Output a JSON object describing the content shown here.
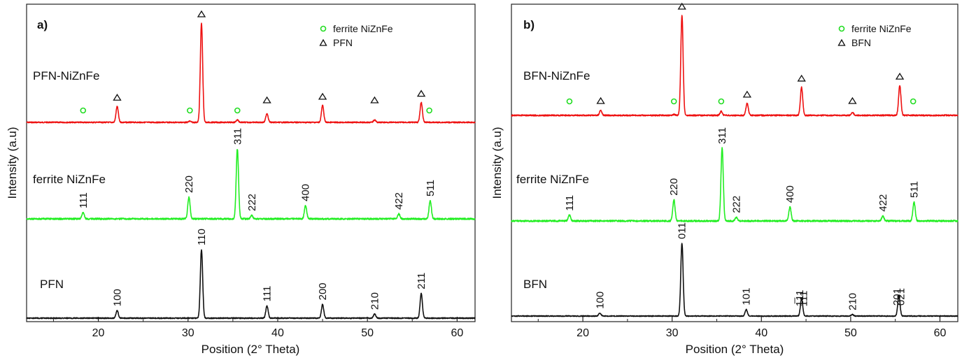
{
  "chart_data": [
    {
      "type": "line",
      "panel_label": "a)",
      "xlabel": "Position (2° Theta)",
      "ylabel": "Intensity (a.u)",
      "xlim": [
        12,
        62
      ],
      "xticks": [
        20,
        30,
        40,
        50,
        60
      ],
      "legend": {
        "placement": "top-right",
        "entries": [
          {
            "marker": "circle",
            "label": "ferrite NiZnFe",
            "color": "#22dd22"
          },
          {
            "marker": "triangle",
            "label": "PFN",
            "color": "#111111"
          }
        ]
      },
      "series": [
        {
          "name": "PFN-NiZnFe",
          "color": "#ee1111",
          "peaks": [
            [
              22.1,
              0.16
            ],
            [
              30.2,
              0.012
            ],
            [
              31.5,
              1.0
            ],
            [
              35.5,
              0.025
            ],
            [
              38.8,
              0.09
            ],
            [
              45.0,
              0.17
            ],
            [
              50.8,
              0.025
            ],
            [
              56.0,
              0.2
            ]
          ],
          "markers": [
            {
              "x": 18.3,
              "type": "circle"
            },
            {
              "x": 22.1,
              "type": "triangle"
            },
            {
              "x": 30.2,
              "type": "circle"
            },
            {
              "x": 31.5,
              "type": "triangle"
            },
            {
              "x": 35.5,
              "type": "circle"
            },
            {
              "x": 38.8,
              "type": "triangle"
            },
            {
              "x": 45.0,
              "type": "triangle"
            },
            {
              "x": 50.8,
              "type": "triangle"
            },
            {
              "x": 56.0,
              "type": "triangle"
            },
            {
              "x": 56.9,
              "type": "circle"
            }
          ]
        },
        {
          "name": "ferrite NiZnFe",
          "color": "#22ee22",
          "peaks": [
            [
              18.3,
              0.09
            ],
            [
              30.1,
              0.31
            ],
            [
              35.5,
              1.0
            ],
            [
              37.1,
              0.05
            ],
            [
              43.1,
              0.19
            ],
            [
              53.5,
              0.07
            ],
            [
              57.0,
              0.26
            ]
          ],
          "hkl": [
            {
              "x": 18.3,
              "label": "111"
            },
            {
              "x": 30.1,
              "label": "220"
            },
            {
              "x": 35.5,
              "label": "311"
            },
            {
              "x": 37.1,
              "label": "222"
            },
            {
              "x": 43.1,
              "label": "400"
            },
            {
              "x": 53.5,
              "label": "422"
            },
            {
              "x": 57.0,
              "label": "511"
            }
          ]
        },
        {
          "name": "PFN",
          "color": "#111111",
          "peaks": [
            [
              22.1,
              0.11
            ],
            [
              31.5,
              1.0
            ],
            [
              38.8,
              0.18
            ],
            [
              45.0,
              0.2
            ],
            [
              50.8,
              0.06
            ],
            [
              56.0,
              0.36
            ]
          ],
          "hkl": [
            {
              "x": 22.1,
              "label": "100"
            },
            {
              "x": 31.5,
              "label": "110"
            },
            {
              "x": 38.8,
              "label": "111"
            },
            {
              "x": 45.0,
              "label": "200"
            },
            {
              "x": 50.8,
              "label": "210"
            },
            {
              "x": 56.0,
              "label": "211"
            }
          ]
        }
      ]
    },
    {
      "type": "line",
      "panel_label": "b)",
      "xlabel": "Position (2° Theta)",
      "ylabel": "Intensity (a.u)",
      "xlim": [
        12,
        62
      ],
      "xticks": [
        20,
        30,
        40,
        50,
        60
      ],
      "legend": {
        "placement": "top-right",
        "entries": [
          {
            "marker": "circle",
            "label": "ferrite NiZnFe",
            "color": "#22dd22"
          },
          {
            "marker": "triangle",
            "label": "BFN",
            "color": "#111111"
          }
        ]
      },
      "series": [
        {
          "name": "BFN-NiZnFe",
          "color": "#ee1111",
          "peaks": [
            [
              22.0,
              0.05
            ],
            [
              30.2,
              0.01
            ],
            [
              31.1,
              1.0
            ],
            [
              35.5,
              0.04
            ],
            [
              38.4,
              0.12
            ],
            [
              44.5,
              0.28
            ],
            [
              50.2,
              0.03
            ],
            [
              55.5,
              0.3
            ]
          ],
          "markers": [
            {
              "x": 18.5,
              "type": "circle"
            },
            {
              "x": 22.0,
              "type": "triangle"
            },
            {
              "x": 30.2,
              "type": "circle"
            },
            {
              "x": 31.1,
              "type": "triangle"
            },
            {
              "x": 35.5,
              "type": "circle"
            },
            {
              "x": 38.4,
              "type": "triangle"
            },
            {
              "x": 44.5,
              "type": "triangle"
            },
            {
              "x": 50.2,
              "type": "triangle"
            },
            {
              "x": 55.5,
              "type": "triangle"
            },
            {
              "x": 57.0,
              "type": "circle"
            }
          ]
        },
        {
          "name": "ferrite NiZnFe",
          "color": "#22ee22",
          "peaks": [
            [
              18.5,
              0.08
            ],
            [
              30.2,
              0.29
            ],
            [
              35.6,
              1.0
            ],
            [
              37.2,
              0.05
            ],
            [
              43.2,
              0.19
            ],
            [
              53.6,
              0.07
            ],
            [
              57.1,
              0.26
            ]
          ],
          "hkl": [
            {
              "x": 18.5,
              "label": "111"
            },
            {
              "x": 30.2,
              "label": "220"
            },
            {
              "x": 35.6,
              "label": "311"
            },
            {
              "x": 37.2,
              "label": "222"
            },
            {
              "x": 43.2,
              "label": "400"
            },
            {
              "x": 53.6,
              "label": "422"
            },
            {
              "x": 57.1,
              "label": "511"
            }
          ]
        },
        {
          "name": "BFN",
          "color": "#111111",
          "peaks": [
            [
              21.9,
              0.04
            ],
            [
              31.1,
              1.0
            ],
            [
              38.3,
              0.09
            ],
            [
              44.5,
              0.24
            ],
            [
              50.2,
              0.02
            ],
            [
              55.4,
              0.28
            ]
          ],
          "hkl": [
            {
              "x": 21.9,
              "label": "100"
            },
            {
              "x": 31.1,
              "label": "011"
            },
            {
              "x": 38.3,
              "label": "101"
            },
            {
              "x": 44.3,
              "label": "1̅11"
            },
            {
              "x": 44.7,
              "label": "111"
            },
            {
              "x": 50.2,
              "label": "210"
            },
            {
              "x": 55.2,
              "label": "201"
            },
            {
              "x": 55.6,
              "label": "021"
            }
          ]
        }
      ]
    }
  ]
}
